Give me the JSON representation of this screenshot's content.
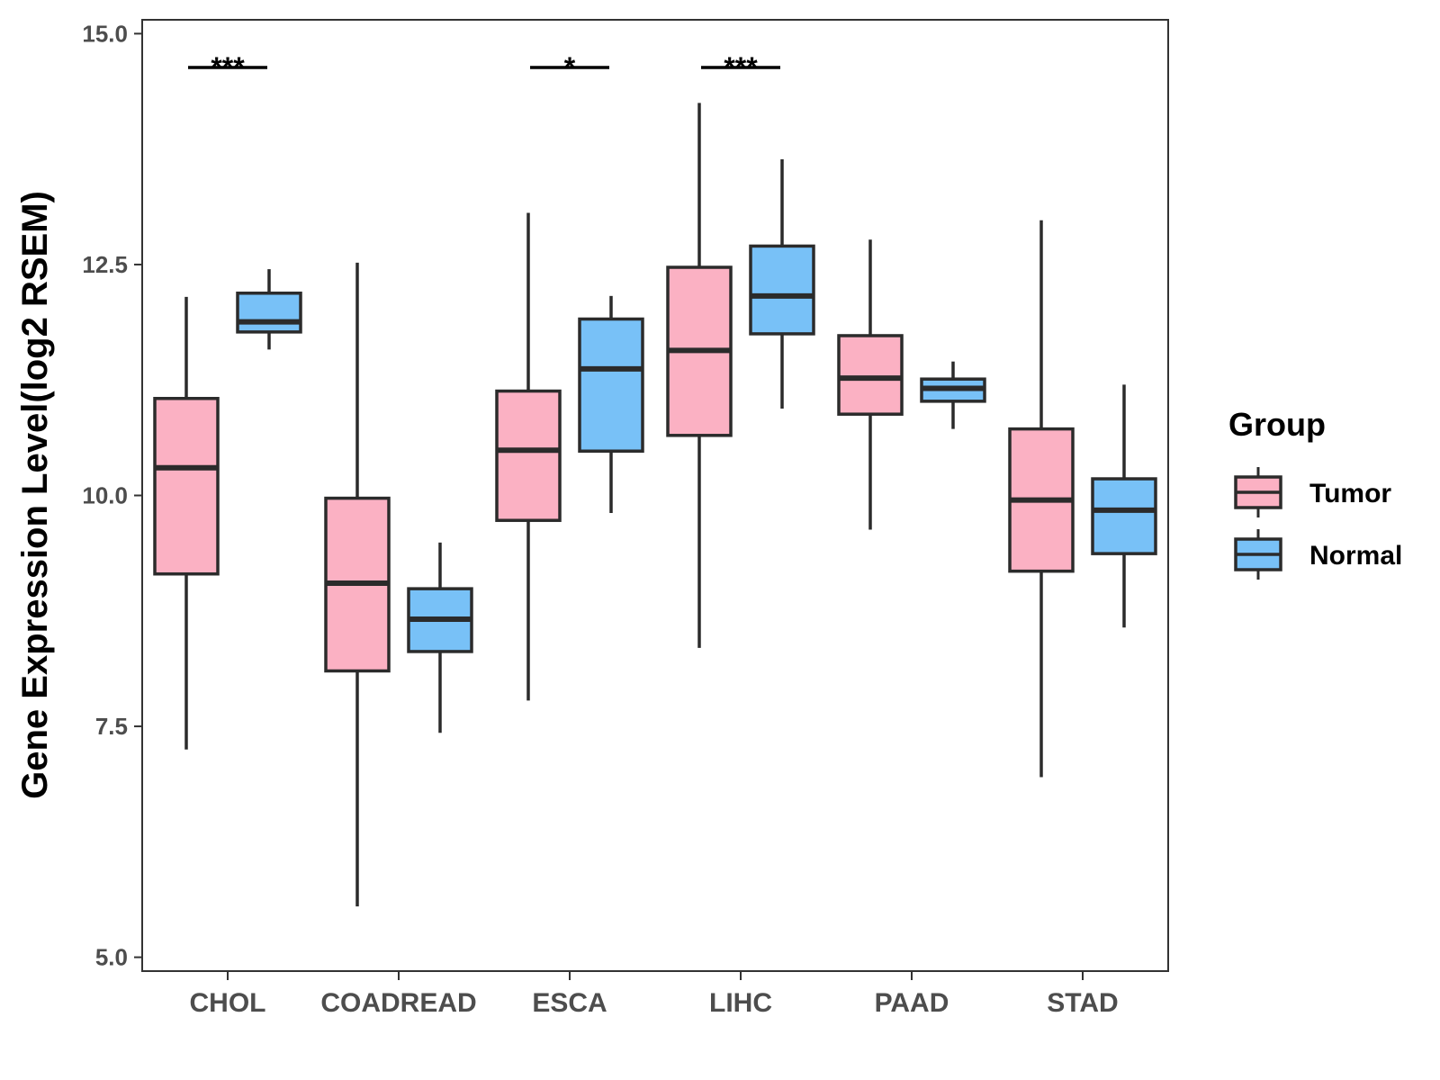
{
  "chart_data": {
    "type": "boxplot",
    "ylabel": "Gene Expression Level(log2 RSEM)",
    "xlabel": "",
    "ylim": [
      4.85,
      15.15
    ],
    "yticks": [
      5.0,
      7.5,
      10.0,
      12.5,
      15.0
    ],
    "ytick_labels": [
      "5.0",
      "7.5",
      "10.0",
      "12.5",
      "15.0"
    ],
    "categories": [
      "CHOL",
      "COADREAD",
      "ESCA",
      "LIHC",
      "PAAD",
      "STAD"
    ],
    "legend": {
      "title": "Group",
      "position": "right",
      "items": [
        {
          "name": "Tumor",
          "color": "#FBB1C3"
        },
        {
          "name": "Normal",
          "color": "#78C1F7"
        }
      ]
    },
    "series": [
      {
        "name": "Tumor",
        "color": "#FBB1C3",
        "boxes": [
          {
            "min": 7.25,
            "q1": 9.15,
            "median": 10.3,
            "q3": 11.05,
            "max": 12.15
          },
          {
            "min": 5.55,
            "q1": 8.1,
            "median": 9.05,
            "q3": 9.97,
            "max": 12.52
          },
          {
            "min": 7.78,
            "q1": 9.73,
            "median": 10.49,
            "q3": 11.13,
            "max": 13.06
          },
          {
            "min": 8.35,
            "q1": 10.65,
            "median": 11.57,
            "q3": 12.47,
            "max": 14.25
          },
          {
            "min": 9.63,
            "q1": 10.88,
            "median": 11.27,
            "q3": 11.73,
            "max": 12.77
          },
          {
            "min": 6.95,
            "q1": 9.18,
            "median": 9.95,
            "q3": 10.72,
            "max": 12.98
          }
        ]
      },
      {
        "name": "Normal",
        "color": "#78C1F7",
        "boxes": [
          {
            "min": 11.58,
            "q1": 11.77,
            "median": 11.88,
            "q3": 12.19,
            "max": 12.45
          },
          {
            "min": 7.43,
            "q1": 8.31,
            "median": 8.66,
            "q3": 8.99,
            "max": 9.49
          },
          {
            "min": 9.81,
            "q1": 10.48,
            "median": 11.37,
            "q3": 11.91,
            "max": 12.16
          },
          {
            "min": 10.94,
            "q1": 11.75,
            "median": 12.16,
            "q3": 12.7,
            "max": 13.64
          },
          {
            "min": 10.72,
            "q1": 11.02,
            "median": 11.16,
            "q3": 11.26,
            "max": 11.45
          },
          {
            "min": 8.57,
            "q1": 9.37,
            "median": 9.84,
            "q3": 10.18,
            "max": 11.2
          }
        ]
      }
    ],
    "significance": [
      {
        "category": "CHOL",
        "label": "***"
      },
      {
        "category": "COADREAD",
        "label": ""
      },
      {
        "category": "ESCA",
        "label": "*"
      },
      {
        "category": "LIHC",
        "label": "***"
      },
      {
        "category": "PAAD",
        "label": ""
      },
      {
        "category": "STAD",
        "label": ""
      }
    ]
  }
}
